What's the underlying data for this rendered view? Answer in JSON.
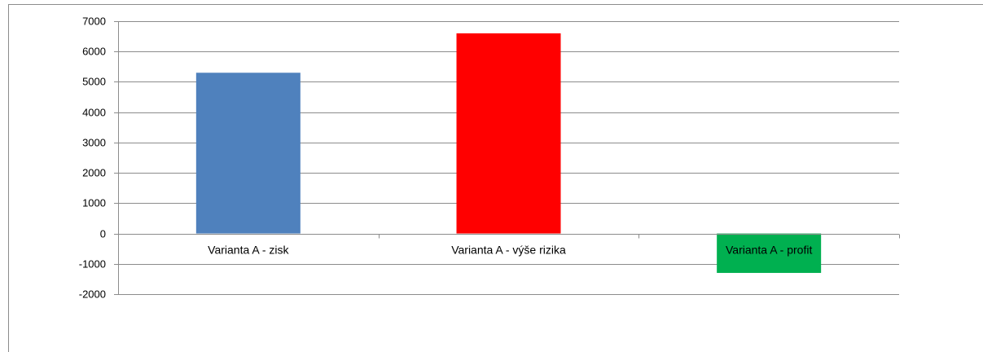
{
  "chart_data": {
    "type": "bar",
    "title": "",
    "xlabel": "",
    "ylabel": "",
    "categories": [
      "Varianta A - zisk",
      "Varianta A - výše rizika",
      "Varianta A - profit"
    ],
    "values": [
      5300,
      6600,
      -1300
    ],
    "bar_colors": [
      "#4f81bd",
      "#ff0000",
      "#00b050"
    ],
    "ylim": [
      -2000,
      7000
    ],
    "y_ticks": [
      7000,
      6000,
      5000,
      4000,
      3000,
      2000,
      1000,
      0,
      -1000,
      -2000
    ],
    "grid": true,
    "legend": "none"
  }
}
